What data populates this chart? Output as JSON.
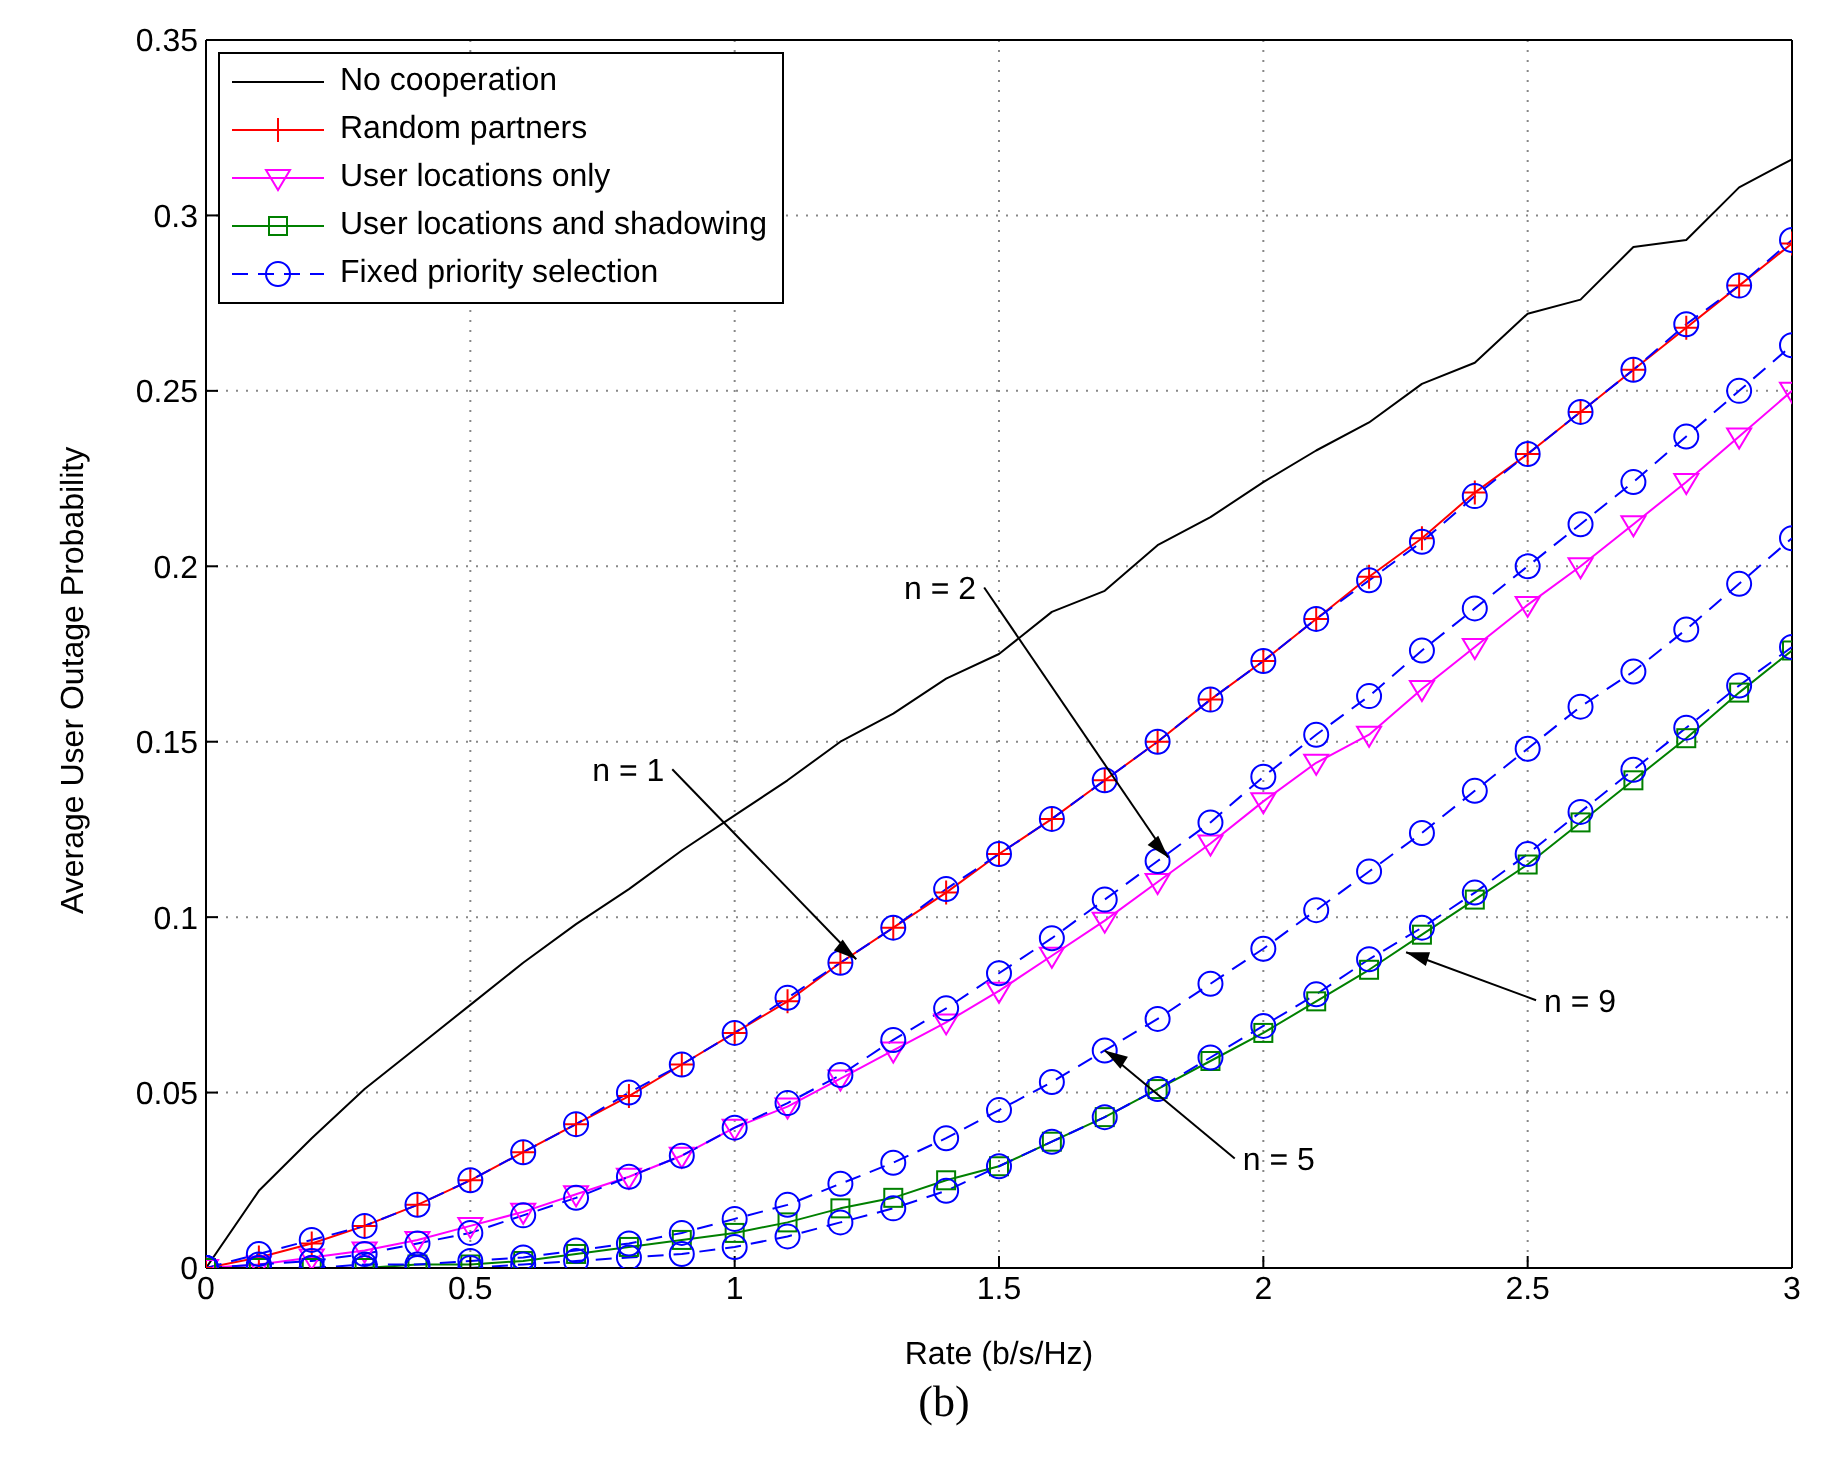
{
  "chart_data": {
    "type": "line",
    "xlabel": "Rate (b/s/Hz)",
    "ylabel": "Average User Outage Probability",
    "x": [
      0,
      0.1,
      0.2,
      0.3,
      0.4,
      0.5,
      0.6,
      0.7,
      0.8,
      0.9,
      1,
      1.1,
      1.2,
      1.3,
      1.4,
      1.5,
      1.6,
      1.7,
      1.8,
      1.9,
      2,
      2.1,
      2.2,
      2.3,
      2.4,
      2.5,
      2.6,
      2.7,
      2.8,
      2.9,
      3
    ],
    "xlim": [
      0,
      3
    ],
    "xticks": [
      0,
      0.5,
      1,
      1.5,
      2,
      2.5,
      3
    ],
    "ylim": [
      0,
      0.35
    ],
    "yticks": [
      0,
      0.05,
      0.1,
      0.15,
      0.2,
      0.25,
      0.3,
      0.35
    ],
    "grid": true,
    "legend": "top left",
    "series": [
      {
        "name": "No cooperation",
        "color": "#000000",
        "marker": "none",
        "line_style": "solid",
        "values": [
          0,
          0.022,
          0.037,
          0.051,
          0.063,
          0.075,
          0.087,
          0.098,
          0.108,
          0.119,
          0.129,
          0.139,
          0.15,
          0.158,
          0.168,
          0.175,
          0.187,
          0.193,
          0.206,
          0.214,
          0.224,
          0.233,
          0.241,
          0.252,
          0.258,
          0.272,
          0.276,
          0.291,
          0.293,
          0.308,
          0.316
        ]
      },
      {
        "name": "Random partners",
        "color": "#ff0000",
        "marker": "cross",
        "line_style": "solid",
        "values": [
          0,
          0.003,
          0.007,
          0.012,
          0.018,
          0.025,
          0.033,
          0.041,
          0.049,
          0.058,
          0.067,
          0.076,
          0.087,
          0.097,
          0.107,
          0.118,
          0.128,
          0.139,
          0.15,
          0.162,
          0.173,
          0.185,
          0.197,
          0.208,
          0.221,
          0.232,
          0.244,
          0.256,
          0.268,
          0.28,
          0.292
        ]
      },
      {
        "name": "User locations only",
        "color": "#ff00ff",
        "marker": "triangle",
        "line_style": "solid",
        "values": [
          0,
          0.001,
          0.003,
          0.005,
          0.008,
          0.012,
          0.016,
          0.021,
          0.026,
          0.032,
          0.04,
          0.046,
          0.054,
          0.062,
          0.07,
          0.079,
          0.089,
          0.099,
          0.11,
          0.121,
          0.133,
          0.144,
          0.152,
          0.165,
          0.177,
          0.189,
          0.2,
          0.212,
          0.224,
          0.237,
          0.25
        ]
      },
      {
        "name": "User locations and shadowing",
        "color": "#008000",
        "marker": "square",
        "line_style": "solid",
        "values": [
          0,
          0,
          0,
          0,
          0.001,
          0.001,
          0.002,
          0.004,
          0.006,
          0.008,
          0.01,
          0.013,
          0.017,
          0.02,
          0.025,
          0.029,
          0.036,
          0.043,
          0.051,
          0.059,
          0.067,
          0.076,
          0.085,
          0.095,
          0.105,
          0.115,
          0.127,
          0.139,
          0.151,
          0.164,
          0.176
        ]
      },
      {
        "name": "Fixed priority selection",
        "color": "#0000ff",
        "marker": "circle",
        "line_style": "dashed",
        "values": [
          0,
          0.004,
          0.008,
          0.012,
          0.018,
          0.025,
          0.033,
          0.041,
          0.05,
          0.058,
          0.067,
          0.077,
          0.087,
          0.097,
          0.108,
          0.118,
          0.128,
          0.139,
          0.15,
          0.162,
          0.173,
          0.185,
          0.196,
          0.207,
          0.22,
          0.232,
          0.244,
          0.256,
          0.269,
          0.28,
          0.293
        ]
      },
      {
        "color": "#0000ff",
        "marker": "circle",
        "line_style": "dashed",
        "values": [
          0,
          0.001,
          0.002,
          0.004,
          0.007,
          0.01,
          0.015,
          0.02,
          0.026,
          0.032,
          0.04,
          0.047,
          0.055,
          0.065,
          0.074,
          0.084,
          0.094,
          0.105,
          0.116,
          0.127,
          0.14,
          0.152,
          0.163,
          0.176,
          0.188,
          0.2,
          0.212,
          0.224,
          0.237,
          0.25,
          0.263
        ]
      },
      {
        "color": "#0000ff",
        "marker": "circle",
        "line_style": "dashed",
        "values": [
          0,
          0,
          0,
          0.001,
          0.001,
          0.002,
          0.003,
          0.005,
          0.007,
          0.01,
          0.014,
          0.018,
          0.024,
          0.03,
          0.037,
          0.045,
          0.053,
          0.062,
          0.071,
          0.081,
          0.091,
          0.102,
          0.113,
          0.124,
          0.136,
          0.148,
          0.16,
          0.17,
          0.182,
          0.195,
          0.208
        ]
      },
      {
        "color": "#0000ff",
        "marker": "circle",
        "line_style": "dashed",
        "values": [
          0,
          0,
          0,
          0,
          0,
          0,
          0.001,
          0.002,
          0.003,
          0.004,
          0.006,
          0.009,
          0.013,
          0.017,
          0.022,
          0.029,
          0.036,
          0.043,
          0.051,
          0.06,
          0.069,
          0.078,
          0.088,
          0.097,
          0.107,
          0.118,
          0.13,
          0.142,
          0.154,
          0.166,
          0.177
        ]
      }
    ],
    "annotations": [
      {
        "text": "n = 1",
        "x": 1.23,
        "y": 0.088
      },
      {
        "text": "n = 2",
        "x": 1.82,
        "y": 0.117
      },
      {
        "text": "n = 5",
        "x": 1.7,
        "y": 0.062
      },
      {
        "text": "n = 9",
        "x": 2.27,
        "y": 0.09
      },
      "(b)"
    ]
  }
}
